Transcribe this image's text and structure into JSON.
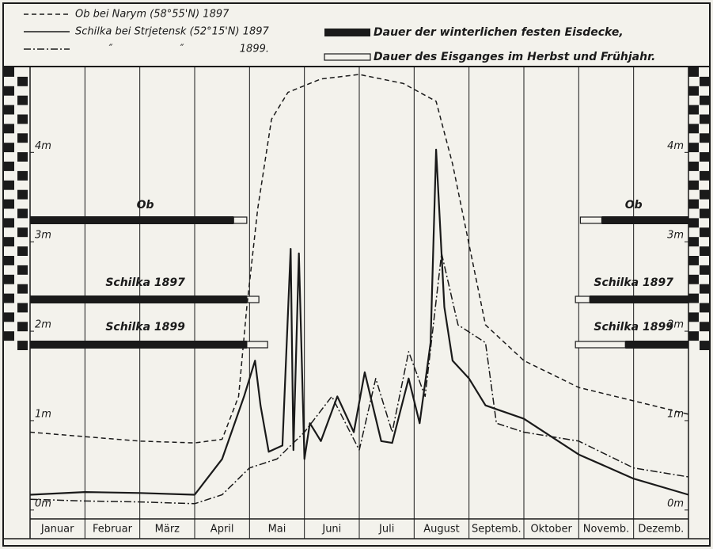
{
  "chart_data": {
    "type": "line",
    "categories": [
      "Januar",
      "Februar",
      "März",
      "April",
      "Mai",
      "Juni",
      "Juli",
      "August",
      "Septemb.",
      "Oktober",
      "Novemb.",
      "Dezemb."
    ],
    "xlim": [
      0,
      12
    ],
    "ylim": [
      -0.17,
      4.88
    ],
    "yticks": [
      {
        "value": 0,
        "label": "0m"
      },
      {
        "value": 1,
        "label": "1m"
      },
      {
        "value": 2,
        "label": "2m"
      },
      {
        "value": 3,
        "label": "3m"
      },
      {
        "value": 4,
        "label": "4m"
      }
    ],
    "series": [
      {
        "name": "Ob bei Narym (58°55'N) 1897",
        "color": "#1a1a1a",
        "dash": "6 4",
        "x": [
          0,
          1,
          2,
          3,
          3.5,
          3.8,
          3.95,
          4.15,
          4.4,
          4.7,
          5.3,
          6.0,
          6.8,
          7.4,
          7.7,
          8.0,
          8.3,
          9.0,
          10.0,
          11,
          12
        ],
        "values": [
          0.8,
          0.75,
          0.7,
          0.68,
          0.72,
          1.2,
          2.2,
          3.3,
          4.3,
          4.6,
          4.75,
          4.8,
          4.7,
          4.5,
          3.8,
          2.9,
          2.0,
          1.6,
          1.3,
          1.15,
          1.0
        ]
      },
      {
        "name": "Schilka bei Strjetensk (52°15'N) 1897",
        "color": "#1a1a1a",
        "dash": "",
        "x": [
          0,
          1,
          2,
          3,
          3.5,
          3.9,
          4.1,
          4.2,
          4.35,
          4.6,
          4.75,
          4.8,
          4.9,
          5.0,
          5.1,
          5.3,
          5.6,
          5.9,
          6.1,
          6.4,
          6.6,
          6.9,
          7.1,
          7.3,
          7.4,
          7.55,
          7.7,
          8.0,
          8.3,
          9.0,
          10.0,
          11.0,
          12.0
        ],
        "values": [
          0.1,
          0.13,
          0.12,
          0.1,
          0.5,
          1.2,
          1.6,
          1.1,
          0.58,
          0.65,
          2.85,
          0.6,
          2.8,
          0.5,
          0.9,
          0.7,
          1.2,
          0.8,
          1.47,
          0.7,
          0.68,
          1.4,
          0.9,
          1.8,
          3.96,
          2.2,
          1.6,
          1.4,
          1.1,
          0.95,
          0.55,
          0.28,
          0.1
        ]
      },
      {
        "name": "1899.",
        "color": "#1a1a1a",
        "dash": "9 3 2 3",
        "x": [
          0,
          1,
          2,
          3,
          3.5,
          4,
          4.5,
          5,
          5.5,
          6,
          6.3,
          6.6,
          6.9,
          7.2,
          7.5,
          7.8,
          8.3,
          8.5,
          9,
          10,
          11,
          12
        ],
        "values": [
          0.05,
          0.03,
          0.02,
          0.0,
          0.1,
          0.4,
          0.5,
          0.8,
          1.2,
          0.6,
          1.4,
          0.8,
          1.7,
          1.2,
          2.8,
          2.0,
          1.8,
          0.9,
          0.8,
          0.7,
          0.4,
          0.3
        ]
      }
    ],
    "ditto_marks": [
      "″",
      "″"
    ],
    "ice_legend": {
      "solid": "Dauer der winterlichen festen Eisdecke,",
      "open": "Dauer des Eisganges im Herbst und Frühjahr."
    },
    "ice": [
      {
        "name": "Ob",
        "solid": [
          [
            0,
            3.71
          ],
          [
            10.42,
            12
          ]
        ],
        "open": [
          [
            3.71,
            3.95
          ],
          [
            10.03,
            10.42
          ]
        ]
      },
      {
        "name": "Schilka 1897",
        "solid": [
          [
            0,
            3.95
          ],
          [
            10.2,
            12
          ]
        ],
        "open": [
          [
            3.95,
            4.17
          ],
          [
            9.94,
            10.2
          ]
        ]
      },
      {
        "name": "Schilka 1899",
        "solid": [
          [
            0,
            3.95
          ],
          [
            10.85,
            12
          ]
        ],
        "open": [
          [
            3.95,
            4.33
          ],
          [
            9.94,
            10.85
          ]
        ]
      }
    ]
  }
}
